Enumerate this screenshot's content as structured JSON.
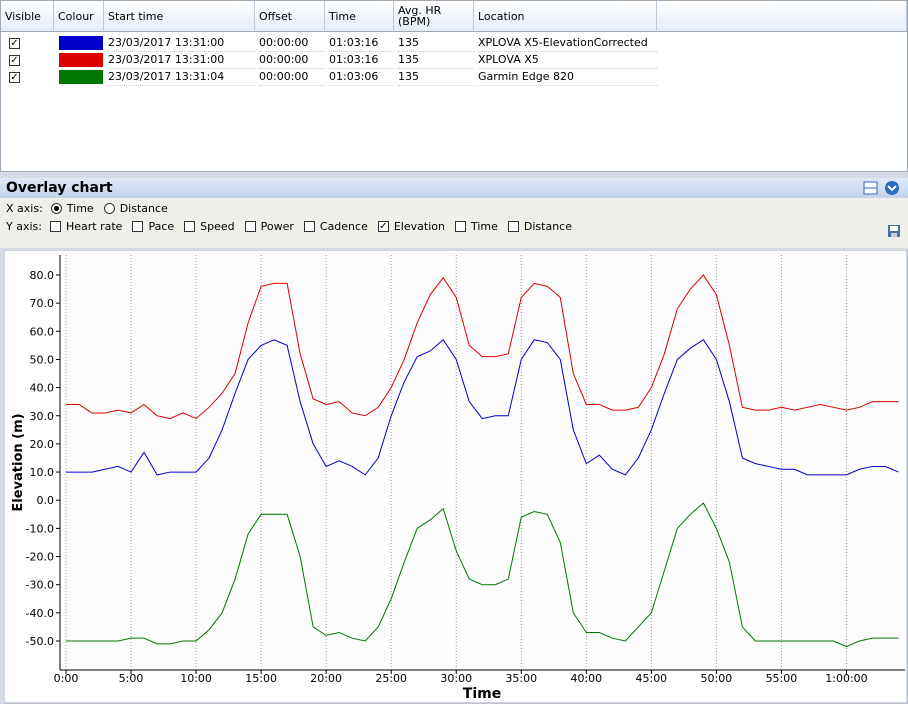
{
  "table": {
    "columns": [
      "Visible",
      "Colour",
      "Start time",
      "Offset",
      "Time",
      "Avg. HR (BPM)",
      "Location"
    ],
    "rows": [
      {
        "visible": true,
        "start_time": "23/03/2017 13:31:00",
        "offset": "00:00:00",
        "time": "01:03:16",
        "avg_hr": 135,
        "location": "XPLOVA X5-ElevationCorrected"
      },
      {
        "visible": true,
        "start_time": "23/03/2017 13:31:00",
        "offset": "00:00:00",
        "time": "01:03:16",
        "avg_hr": 135,
        "location": "XPLOVA X5"
      },
      {
        "visible": true,
        "start_time": "23/03/2017 13:31:04",
        "offset": "00:00:00",
        "time": "01:03:06",
        "avg_hr": 135,
        "location": "Garmin Edge 820"
      }
    ]
  },
  "panel": {
    "title": "Overlay chart",
    "x_axis_label": "X axis:",
    "x_axis_options": [
      {
        "label": "Time",
        "selected": true
      },
      {
        "label": "Distance",
        "selected": false
      }
    ],
    "y_axis_label": "Y axis:",
    "y_axis_options": [
      {
        "label": "Heart rate",
        "checked": false
      },
      {
        "label": "Pace",
        "checked": false
      },
      {
        "label": "Speed",
        "checked": false
      },
      {
        "label": "Power",
        "checked": false
      },
      {
        "label": "Cadence",
        "checked": false
      },
      {
        "label": "Elevation",
        "checked": true
      },
      {
        "label": "Time",
        "checked": false
      },
      {
        "label": "Distance",
        "checked": false
      }
    ]
  },
  "chart_data": {
    "type": "line",
    "x_label": "Time",
    "y_label": "Elevation (m)",
    "x": [
      0,
      1,
      2,
      3,
      4,
      5,
      6,
      7,
      8,
      9,
      10,
      11,
      12,
      13,
      14,
      15,
      16,
      17,
      18,
      19,
      20,
      21,
      22,
      23,
      24,
      25,
      26,
      27,
      28,
      29,
      30,
      31,
      32,
      33,
      34,
      35,
      36,
      37,
      38,
      39,
      40,
      41,
      42,
      43,
      44,
      45,
      46,
      47,
      48,
      49,
      50,
      51,
      52,
      53,
      54,
      55,
      56,
      57,
      58,
      59,
      60,
      61,
      62,
      63,
      64
    ],
    "series": [
      {
        "color": "#0000cc",
        "values": [
          10,
          10,
          10,
          11,
          12,
          10,
          17,
          9,
          10,
          10,
          10,
          15,
          25,
          38,
          50,
          55,
          57,
          55,
          35,
          20,
          12,
          14,
          12,
          9,
          15,
          30,
          42,
          51,
          53,
          57,
          50,
          35,
          29,
          30,
          30,
          50,
          57,
          56,
          50,
          25,
          13,
          16,
          11,
          9,
          15,
          25,
          38,
          50,
          54,
          57,
          50,
          35,
          15,
          13,
          12,
          11,
          11,
          9,
          9,
          9,
          9,
          11,
          12,
          12,
          10
        ]
      },
      {
        "color": "#dd0000",
        "values": [
          34,
          34,
          31,
          31,
          32,
          31,
          34,
          30,
          29,
          31,
          29,
          33,
          38,
          45,
          63,
          76,
          77,
          77,
          52,
          36,
          34,
          35,
          31,
          30,
          33,
          40,
          50,
          63,
          73,
          79,
          72,
          55,
          51,
          51,
          52,
          72,
          77,
          76,
          72,
          45,
          34,
          34,
          32,
          32,
          33,
          40,
          52,
          68,
          75,
          80,
          73,
          55,
          33,
          32,
          32,
          33,
          32,
          33,
          34,
          33,
          32,
          33,
          35,
          35,
          35
        ]
      },
      {
        "color": "#007700",
        "values": [
          -50,
          -50,
          -50,
          -50,
          -50,
          -49,
          -49,
          -51,
          -51,
          -50,
          -50,
          -46,
          -40,
          -28,
          -12,
          -5,
          -5,
          -5,
          -20,
          -45,
          -48,
          -47,
          -49,
          -50,
          -45,
          -35,
          -22,
          -10,
          -7,
          -3,
          -18,
          -28,
          -30,
          -30,
          -28,
          -6,
          -4,
          -5,
          -15,
          -40,
          -47,
          -47,
          -49,
          -50,
          -45,
          -40,
          -25,
          -10,
          -5,
          -1,
          -10,
          -22,
          -45,
          -50,
          -50,
          -50,
          -50,
          -50,
          -50,
          -50,
          -52,
          -50,
          -49,
          -49,
          -49
        ]
      }
    ],
    "xlim": [
      0,
      64.5
    ],
    "ylim": [
      -60.3,
      87.1
    ],
    "xticks": [
      {
        "value": 0,
        "label": "0:00"
      },
      {
        "value": 5,
        "label": "5:00"
      },
      {
        "value": 10,
        "label": "10:00"
      },
      {
        "value": 15,
        "label": "15:00"
      },
      {
        "value": 20,
        "label": "20:00"
      },
      {
        "value": 25,
        "label": "25:00"
      },
      {
        "value": 30,
        "label": "30:00"
      },
      {
        "value": 35,
        "label": "35:00"
      },
      {
        "value": 40,
        "label": "40:00"
      },
      {
        "value": 45,
        "label": "45:00"
      },
      {
        "value": 50,
        "label": "50:00"
      },
      {
        "value": 55,
        "label": "55:00"
      },
      {
        "value": 60,
        "label": "1:00:00"
      }
    ],
    "yticks": [
      {
        "value": -50,
        "label": "-50.0"
      },
      {
        "value": -40,
        "label": "-40.0"
      },
      {
        "value": -30,
        "label": "-30.0"
      },
      {
        "value": -20,
        "label": "-20.0"
      },
      {
        "value": -10,
        "label": "-10.0"
      },
      {
        "value": 0,
        "label": "0.0"
      },
      {
        "value": 10,
        "label": "10.0"
      },
      {
        "value": 20,
        "label": "20.0"
      },
      {
        "value": 30,
        "label": "30.0"
      },
      {
        "value": 40,
        "label": "40.0"
      },
      {
        "value": 50,
        "label": "50.0"
      },
      {
        "value": 60,
        "label": "60.0"
      },
      {
        "value": 70,
        "label": "70.0"
      },
      {
        "value": 80,
        "label": "80.0"
      }
    ],
    "grid": "x"
  }
}
